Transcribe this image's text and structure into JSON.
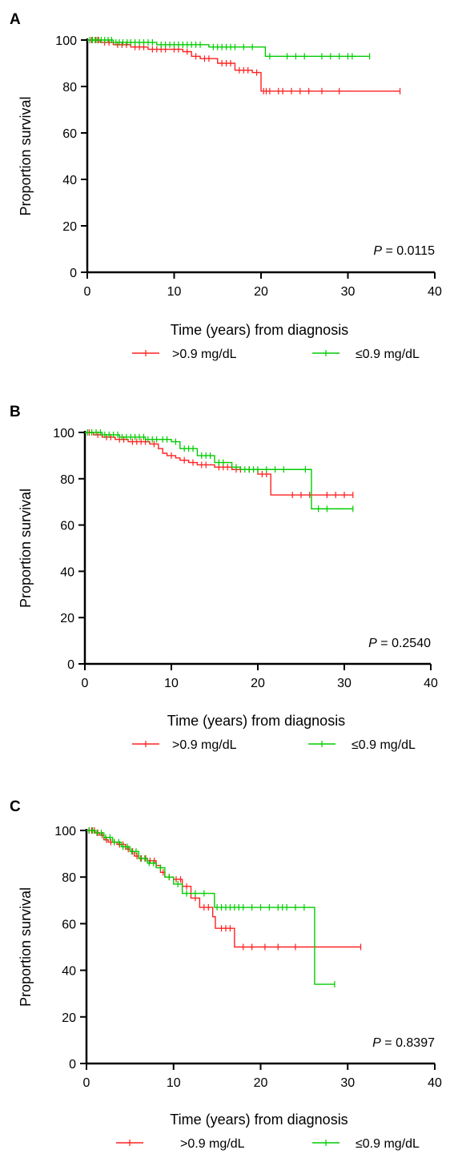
{
  "chart_data": [
    {
      "type": "line",
      "panel_label": "A",
      "xlabel": "Time (years) from diagnosis",
      "ylabel": "Proportion survival",
      "xlim": [
        0,
        40
      ],
      "ylim": [
        0,
        100
      ],
      "x_ticks": [
        "0",
        "10",
        "20",
        "30",
        "40"
      ],
      "y_ticks": [
        "0",
        "20",
        "40",
        "60",
        "80",
        "100"
      ],
      "annotation": {
        "p_label": "P",
        "p_value": "= 0.0115"
      },
      "legend_placement": "bottom",
      "series": [
        {
          "name": ">0.9 mg/dL",
          "color": "#ff2020",
          "steps": [
            [
              0,
              100
            ],
            [
              1.5,
              99
            ],
            [
              3,
              98
            ],
            [
              5,
              97
            ],
            [
              7,
              96
            ],
            [
              11,
              95
            ],
            [
              12,
              93
            ],
            [
              13,
              92
            ],
            [
              15,
              90
            ],
            [
              17,
              87
            ],
            [
              19,
              86
            ],
            [
              20,
              78
            ],
            [
              36,
              78
            ]
          ],
          "censors": [
            0.5,
            1,
            1.3,
            2,
            2.5,
            3.5,
            4,
            4.5,
            5.5,
            6,
            6.5,
            7.5,
            8,
            8.5,
            9,
            10,
            10.5,
            11.5,
            12.5,
            13.5,
            14,
            15.5,
            16,
            16.5,
            17.5,
            18,
            18.5,
            19.5,
            20.3,
            20.6,
            21,
            22,
            22.5,
            23.5,
            24.5,
            25.5,
            27,
            29,
            36
          ]
        },
        {
          "name": "≤0.9 mg/dL",
          "color": "#00cc00",
          "steps": [
            [
              0,
              100
            ],
            [
              3,
              99
            ],
            [
              8,
              98
            ],
            [
              14,
              97
            ],
            [
              20,
              97
            ],
            [
              20.5,
              93
            ],
            [
              32.5,
              93
            ]
          ],
          "censors": [
            0.3,
            0.6,
            0.9,
            1.2,
            1.6,
            2,
            2.4,
            2.8,
            3.3,
            3.7,
            4.1,
            4.6,
            5,
            5.5,
            6,
            6.5,
            7,
            7.5,
            8.5,
            9,
            9.5,
            10,
            10.5,
            11,
            11.5,
            12,
            12.5,
            13,
            14.5,
            15,
            15.5,
            16,
            16.5,
            17,
            18,
            19,
            21,
            23,
            24,
            25,
            27,
            28,
            29,
            30,
            30.5,
            32.5
          ]
        }
      ]
    },
    {
      "type": "line",
      "panel_label": "B",
      "xlabel": "Time (years) from diagnosis",
      "ylabel": "Proportion survival",
      "xlim": [
        0,
        40
      ],
      "ylim": [
        0,
        100
      ],
      "x_ticks": [
        "0",
        "10",
        "20",
        "30",
        "40"
      ],
      "y_ticks": [
        "0",
        "20",
        "40",
        "60",
        "80",
        "100"
      ],
      "annotation": {
        "p_label": "P",
        "p_value": "= 0.2540"
      },
      "legend_placement": "bottom",
      "series": [
        {
          "name": ">0.9 mg/dL",
          "color": "#ff2020",
          "steps": [
            [
              0,
              100
            ],
            [
              1,
              99
            ],
            [
              2,
              98
            ],
            [
              3.5,
              97
            ],
            [
              5,
              96
            ],
            [
              7.5,
              95
            ],
            [
              8.5,
              93
            ],
            [
              9,
              91
            ],
            [
              9.5,
              90
            ],
            [
              10.5,
              89
            ],
            [
              11,
              88
            ],
            [
              12,
              87
            ],
            [
              13,
              86
            ],
            [
              15,
              85
            ],
            [
              17,
              84
            ],
            [
              20,
              82
            ],
            [
              21.5,
              73
            ],
            [
              31,
              73
            ]
          ],
          "censors": [
            0.5,
            1.5,
            2.5,
            3,
            4,
            4.5,
            5.5,
            6,
            6.5,
            7,
            8,
            10,
            11.5,
            12.5,
            13.5,
            14,
            15.5,
            16,
            16.5,
            17.5,
            18,
            19,
            20.5,
            21,
            24,
            25,
            26,
            28,
            29,
            30,
            31
          ]
        },
        {
          "name": "≤0.9 mg/dL",
          "color": "#00cc00",
          "steps": [
            [
              0,
              100
            ],
            [
              2,
              99
            ],
            [
              4,
              98
            ],
            [
              7,
              97
            ],
            [
              10,
              96
            ],
            [
              11,
              93
            ],
            [
              13,
              90
            ],
            [
              15,
              87
            ],
            [
              17,
              85
            ],
            [
              18,
              84
            ],
            [
              26,
              84
            ],
            [
              26.2,
              67
            ],
            [
              31,
              67
            ]
          ],
          "censors": [
            0.3,
            0.8,
            1.3,
            1.8,
            2.3,
            2.8,
            3.3,
            3.8,
            4.3,
            4.8,
            5.3,
            5.8,
            6.3,
            6.8,
            7.3,
            7.8,
            8.3,
            9,
            9.5,
            10.5,
            11.5,
            12,
            12.5,
            13.5,
            14,
            14.5,
            15.5,
            16,
            17.5,
            18.5,
            19,
            19.5,
            20,
            21,
            22,
            23,
            25.5,
            27,
            28,
            31
          ]
        }
      ]
    },
    {
      "type": "line",
      "panel_label": "C",
      "xlabel": "Time (years) from diagnosis",
      "ylabel": "Proportion survival",
      "xlim": [
        0,
        40
      ],
      "ylim": [
        0,
        100
      ],
      "x_ticks": [
        "0",
        "10",
        "20",
        "30",
        "40"
      ],
      "y_ticks": [
        "0",
        "20",
        "40",
        "60",
        "80",
        "100"
      ],
      "annotation": {
        "p_label": "P",
        "p_value": "= 0.8397"
      },
      "legend_placement": "bottom",
      "series": [
        {
          "name": ">0.9 mg/dL",
          "color": "#ff2020",
          "steps": [
            [
              0,
              100
            ],
            [
              1,
              99
            ],
            [
              1.5,
              98
            ],
            [
              2,
              96
            ],
            [
              2.5,
              95
            ],
            [
              3.5,
              94
            ],
            [
              4.5,
              92
            ],
            [
              5,
              91
            ],
            [
              5.5,
              89
            ],
            [
              6,
              88
            ],
            [
              7,
              87
            ],
            [
              8,
              85
            ],
            [
              8.5,
              82
            ],
            [
              9,
              80
            ],
            [
              10,
              79
            ],
            [
              11,
              76
            ],
            [
              12,
              71
            ],
            [
              13,
              67
            ],
            [
              14.5,
              63
            ],
            [
              14.8,
              58
            ],
            [
              17,
              50
            ],
            [
              31.5,
              50
            ]
          ],
          "censors": [
            0.3,
            0.6,
            0.9,
            1.3,
            1.8,
            2.3,
            2.8,
            3.2,
            3.8,
            4.2,
            4.8,
            5.3,
            5.8,
            6.3,
            6.8,
            7.3,
            7.8,
            8.8,
            9.5,
            10.3,
            10.8,
            11.5,
            12.5,
            13.5,
            14,
            15.5,
            16,
            16.5,
            18,
            19,
            20.5,
            22,
            24,
            31.5
          ]
        },
        {
          "name": "≤0.9 mg/dL",
          "color": "#00cc00",
          "steps": [
            [
              0,
              100
            ],
            [
              1,
              99
            ],
            [
              2,
              97
            ],
            [
              3,
              95
            ],
            [
              4,
              93
            ],
            [
              5,
              91
            ],
            [
              6,
              88
            ],
            [
              7,
              86
            ],
            [
              8,
              84
            ],
            [
              9,
              80
            ],
            [
              10,
              77
            ],
            [
              11,
              73
            ],
            [
              14.5,
              73
            ],
            [
              14.7,
              67
            ],
            [
              26,
              67
            ],
            [
              26.2,
              34
            ],
            [
              28.5,
              34
            ]
          ],
          "censors": [
            0.3,
            0.7,
            1.2,
            1.7,
            2.2,
            2.7,
            3.2,
            3.7,
            4.2,
            4.7,
            5.2,
            5.7,
            6.2,
            6.7,
            7.2,
            7.7,
            8.5,
            9.5,
            10.5,
            11.5,
            12.5,
            13.5,
            15,
            15.5,
            16,
            16.5,
            17,
            17.5,
            18,
            19,
            20,
            21,
            22,
            22.5,
            23,
            24,
            25,
            28.5
          ]
        }
      ]
    }
  ]
}
